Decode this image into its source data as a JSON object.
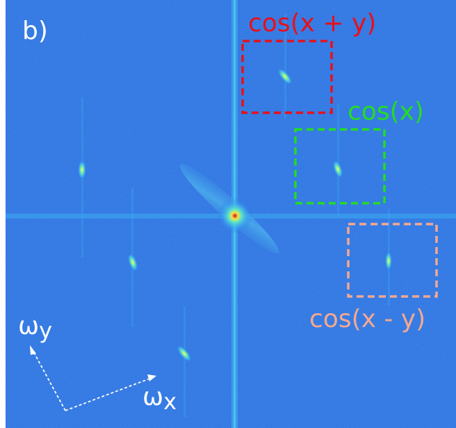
{
  "panel_label": "b)",
  "regions": [
    {
      "label": "cos(x + y)",
      "color": "#e8101a"
    },
    {
      "label": "cos(x)",
      "color": "#22dd22"
    },
    {
      "label": "cos(x - y)",
      "color": "#f4a890"
    }
  ],
  "axes": {
    "x_label": "ω",
    "x_subscript": "x",
    "y_label": "ω",
    "y_subscript": "y",
    "color": "#ffffff"
  },
  "colors": {
    "background": "#2a6fe0",
    "streak": "#3aa8f0",
    "peak_core": "#ffff40",
    "center_core": "#c0102a"
  }
}
